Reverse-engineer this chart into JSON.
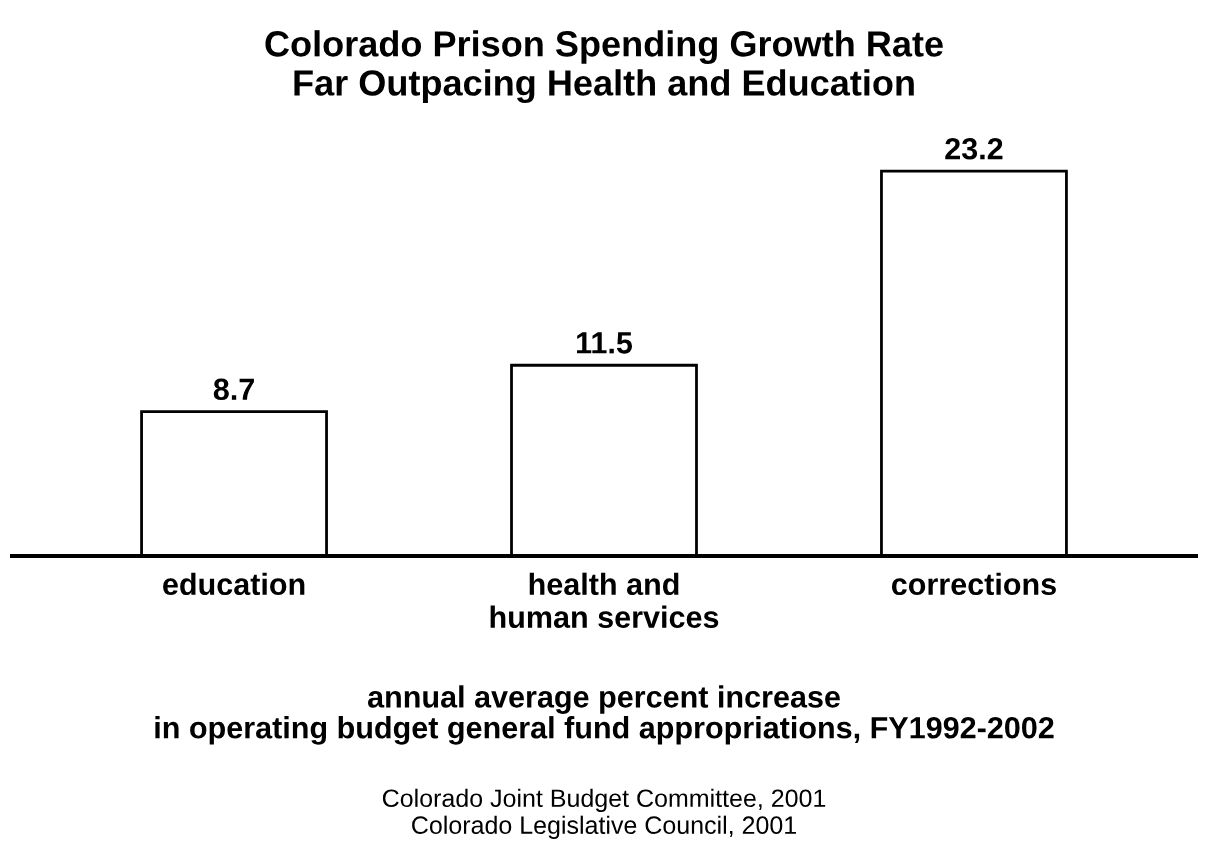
{
  "chart_data": {
    "type": "bar",
    "title": "Colorado Prison Spending Growth Rate\nFar Outpacing Health and Education",
    "categories": [
      "education",
      "health and\nhuman services",
      "corrections"
    ],
    "values": [
      8.7,
      11.5,
      23.2
    ],
    "color": "#ffffff",
    "data_labels": true,
    "xlabel": "annual average percent increase\nin operating budget general fund appropriations, FY1992-2002",
    "annotations": [
      "Colorado Joint Budget Committee, 2001\nColorado Legislative Council, 2001"
    ]
  }
}
